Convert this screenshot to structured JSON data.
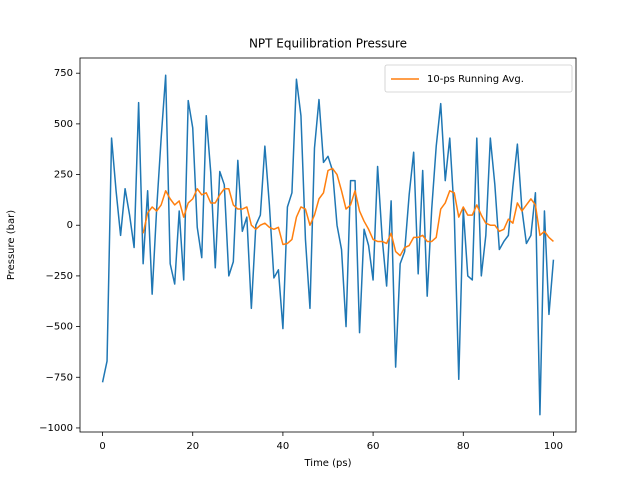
{
  "chart_data": {
    "type": "line",
    "title": "NPT Equilibration Pressure",
    "x_label": "Time (ps)",
    "y_label": "Pressure (bar)",
    "xlim": [
      -5,
      105
    ],
    "ylim": [
      -1020,
      825
    ],
    "xticks": [
      0,
      20,
      40,
      60,
      80,
      100
    ],
    "yticks": [
      {
        "value": -1000,
        "label": "−1000"
      },
      {
        "value": -750,
        "label": "−750"
      },
      {
        "value": -500,
        "label": "−500"
      },
      {
        "value": -250,
        "label": "−250"
      },
      0,
      250,
      500,
      750
    ],
    "legend": "upper right",
    "series": [
      {
        "color": "#1f77b4",
        "x": [
          0,
          1,
          2,
          3,
          4,
          5,
          6,
          7,
          8,
          9,
          10,
          11,
          12,
          13,
          14,
          15,
          16,
          17,
          18,
          19,
          20,
          21,
          22,
          23,
          24,
          25,
          26,
          27,
          28,
          29,
          30,
          31,
          32,
          33,
          34,
          35,
          36,
          37,
          38,
          39,
          40,
          41,
          42,
          43,
          44,
          45,
          46,
          47,
          48,
          49,
          50,
          51,
          52,
          53,
          54,
          55,
          56,
          57,
          58,
          59,
          60,
          61,
          62,
          63,
          64,
          65,
          66,
          67,
          68,
          69,
          70,
          71,
          72,
          73,
          74,
          75,
          76,
          77,
          78,
          79,
          80,
          81,
          82,
          83,
          84,
          85,
          86,
          87,
          88,
          89,
          90,
          91,
          92,
          93,
          94,
          95,
          96,
          97,
          98,
          99,
          100
        ],
        "values": [
          -775,
          -670,
          430,
          170,
          -50,
          180,
          50,
          -110,
          605,
          -190,
          170,
          -340,
          80,
          430,
          740,
          -190,
          -290,
          70,
          -270,
          615,
          480,
          -10,
          -160,
          540,
          260,
          -210,
          265,
          200,
          -250,
          -180,
          320,
          -30,
          40,
          -410,
          0,
          50,
          390,
          100,
          -260,
          -220,
          -510,
          90,
          160,
          720,
          540,
          -70,
          -410,
          380,
          620,
          310,
          340,
          270,
          0,
          -120,
          -500,
          220,
          220,
          -530,
          -20,
          -100,
          -270,
          290,
          -60,
          -300,
          120,
          -700,
          -190,
          -130,
          150,
          360,
          -240,
          270,
          -350,
          80,
          390,
          600,
          220,
          430,
          60,
          -760,
          80,
          -250,
          -270,
          430,
          -250,
          -50,
          430,
          200,
          -120,
          -80,
          -50,
          190,
          400,
          80,
          -90,
          -50,
          160,
          -935,
          70,
          -440,
          -170
        ]
      },
      {
        "name": "10-ps Running Avg.",
        "color": "#ff7f0e",
        "x": [
          9,
          10,
          11,
          12,
          13,
          14,
          15,
          16,
          17,
          18,
          19,
          20,
          21,
          22,
          23,
          24,
          25,
          26,
          27,
          28,
          29,
          30,
          31,
          32,
          33,
          34,
          35,
          36,
          37,
          38,
          39,
          40,
          41,
          42,
          43,
          44,
          45,
          46,
          47,
          48,
          49,
          50,
          51,
          52,
          53,
          54,
          55,
          56,
          57,
          58,
          59,
          60,
          61,
          62,
          63,
          64,
          65,
          66,
          67,
          68,
          69,
          70,
          71,
          72,
          73,
          74,
          75,
          76,
          77,
          78,
          79,
          80,
          81,
          82,
          83,
          84,
          85,
          86,
          87,
          88,
          89,
          90,
          91,
          92,
          93,
          94,
          95,
          96,
          97,
          98,
          99,
          100
        ],
        "values": [
          -40,
          60,
          90,
          70,
          100,
          170,
          130,
          100,
          120,
          40,
          110,
          130,
          180,
          150,
          160,
          110,
          110,
          150,
          180,
          180,
          100,
          80,
          80,
          90,
          0,
          -20,
          0,
          10,
          -10,
          -20,
          -10,
          -95,
          -90,
          -70,
          40,
          90,
          80,
          0,
          50,
          130,
          160,
          270,
          280,
          250,
          170,
          80,
          100,
          170,
          70,
          20,
          -20,
          -70,
          -80,
          -80,
          -90,
          -40,
          -130,
          -150,
          -110,
          -100,
          -60,
          -60,
          -50,
          -80,
          -80,
          -60,
          80,
          110,
          170,
          160,
          40,
          90,
          50,
          50,
          100,
          50,
          10,
          0,
          0,
          -30,
          -20,
          30,
          10,
          110,
          70,
          100,
          130,
          100,
          -50,
          -30,
          -60,
          -80
        ]
      }
    ]
  }
}
